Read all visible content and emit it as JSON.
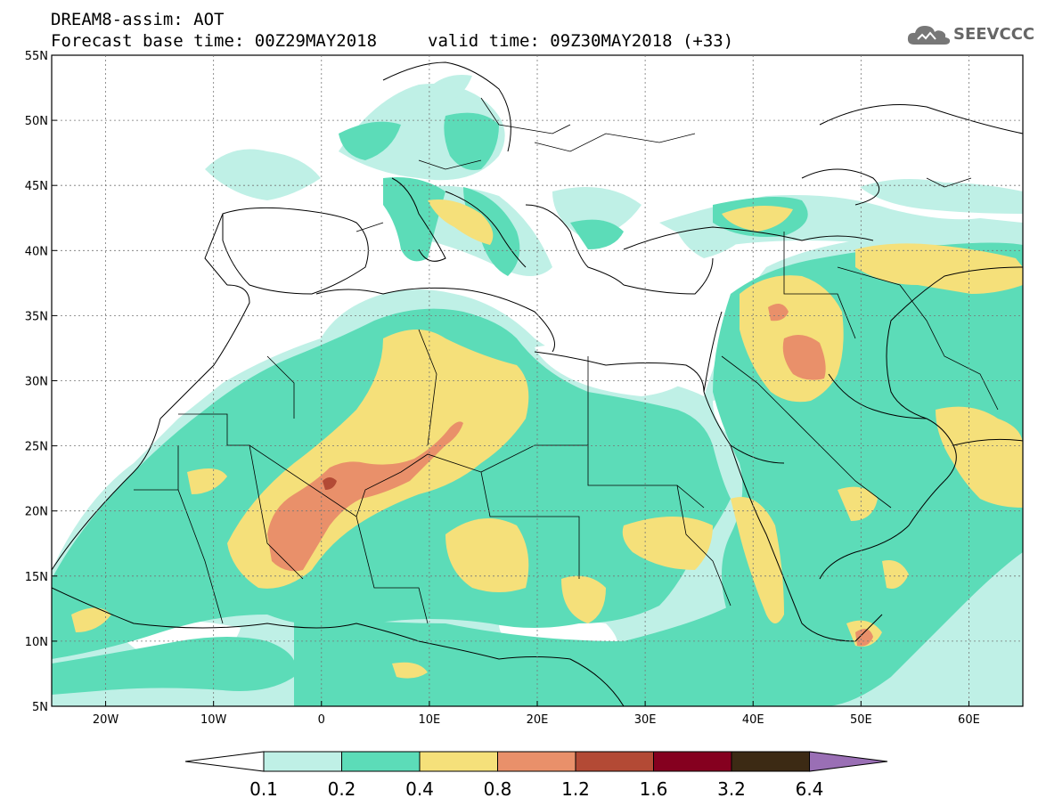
{
  "header": {
    "title": "DREAM8-assim: AOT",
    "base_time": "Forecast base time: 00Z29MAY2018",
    "valid_time": "valid time: 09Z30MAY2018 (+33)",
    "logo_text": "SEEVCCC"
  },
  "axes": {
    "lat_labels": [
      "55N",
      "50N",
      "45N",
      "40N",
      "35N",
      "30N",
      "25N",
      "20N",
      "15N",
      "10N",
      "5N"
    ],
    "lon_labels": [
      "20W",
      "10W",
      "0",
      "10E",
      "20E",
      "30E",
      "40E",
      "50E",
      "60E"
    ]
  },
  "colorbar": {
    "labels": [
      "0.1",
      "0.2",
      "0.4",
      "0.8",
      "1.2",
      "1.6",
      "3.2",
      "6.4"
    ],
    "colors": [
      "#ffffff",
      "#bff0e6",
      "#5cdcb8",
      "#f5e07a",
      "#e9906a",
      "#b34a35",
      "#85001f",
      "#3c2a14",
      "#9a6fb5"
    ]
  },
  "palette": {
    "land": "#ffffff",
    "level_1": "#bff0e6",
    "level_2": "#5cdcb8",
    "level_3": "#f5e07a",
    "level_4": "#e9906a",
    "level_5": "#b34a35"
  }
}
